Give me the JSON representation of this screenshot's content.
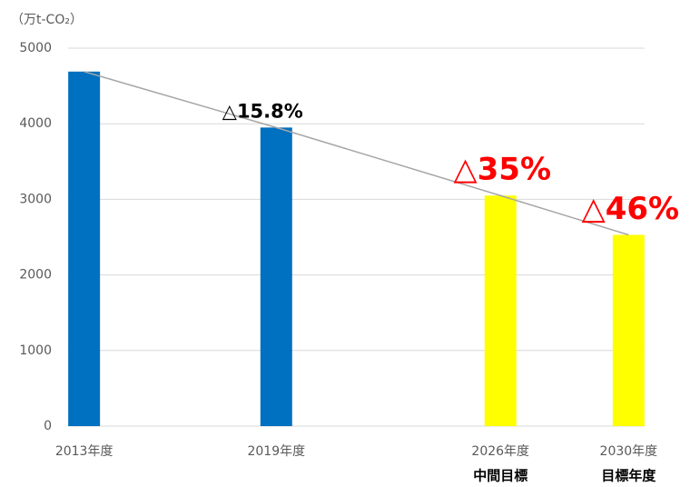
{
  "chart_data": {
    "type": "bar",
    "unit_label": "（万t-CO₂）",
    "x": [
      2013,
      2019,
      2026,
      2030
    ],
    "values": [
      4690,
      3950,
      3050,
      2530
    ],
    "colors": [
      "#0070c0",
      "#0070c0",
      "#ffff00",
      "#ffff00"
    ],
    "trend_line_color": "#a6a6a6",
    "xlim": [
      2012.5,
      2030.5
    ],
    "xticks": [
      {
        "value": 2013,
        "label": "2013年度"
      },
      {
        "value": 2019,
        "label": "2019年度"
      },
      {
        "value": 2026,
        "label": "2026年度"
      },
      {
        "value": 2030,
        "label": "2030年度"
      }
    ],
    "xsublabels": [
      null,
      null,
      "中間目標",
      "目標年度"
    ],
    "ylim": [
      0,
      5000
    ],
    "yticks": [
      0,
      1000,
      2000,
      3000,
      4000,
      5000
    ],
    "grid": true,
    "annotations": [
      {
        "text": "△15.8%",
        "point": 1,
        "color": "#000000"
      },
      {
        "text": "△35%",
        "point": 2,
        "color": "#ff0000"
      },
      {
        "text": "△46%",
        "point": 3,
        "color": "#ff0000"
      }
    ]
  }
}
